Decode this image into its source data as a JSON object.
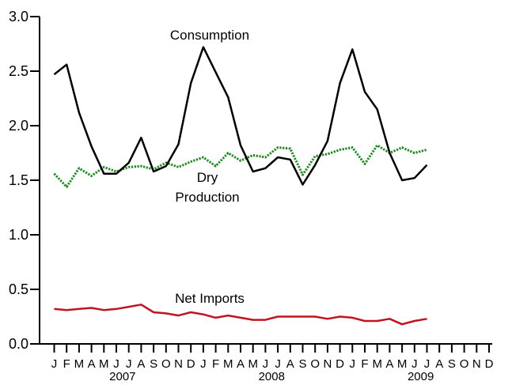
{
  "chart_data": {
    "type": "line",
    "title": "",
    "xlabel": "",
    "ylabel": "",
    "ylim": [
      0,
      3.0
    ],
    "yticks": [
      "0.0",
      "0.5",
      "1.0",
      "1.5",
      "2.0",
      "2.5",
      "3.0"
    ],
    "month_labels": [
      "J",
      "F",
      "M",
      "A",
      "M",
      "J",
      "J",
      "A",
      "S",
      "O",
      "N",
      "D",
      "J",
      "F",
      "M",
      "A",
      "M",
      "J",
      "J",
      "A",
      "S",
      "O",
      "N",
      "D",
      "J",
      "F",
      "M",
      "A",
      "M",
      "J",
      "J",
      "A",
      "S",
      "O",
      "N",
      "D"
    ],
    "year_labels": [
      "2007",
      "2008",
      "2009"
    ],
    "grid": false,
    "legend": "none",
    "annotations": [
      {
        "text": "Consumption",
        "series": "consumption"
      },
      {
        "text": "Dry",
        "series": "dry_production"
      },
      {
        "text": "Production",
        "series": "dry_production"
      },
      {
        "text": "Net Imports",
        "series": "net_imports"
      }
    ],
    "series": [
      {
        "id": "consumption",
        "color": "#000000",
        "style": "solid",
        "values": [
          2.47,
          2.56,
          2.12,
          1.81,
          1.56,
          1.56,
          1.66,
          1.89,
          1.58,
          1.63,
          1.83,
          2.39,
          2.72,
          2.49,
          2.26,
          1.82,
          1.58,
          1.61,
          1.71,
          1.69,
          1.46,
          1.64,
          1.86,
          2.39,
          2.7,
          2.31,
          2.15,
          1.75,
          1.5,
          1.52,
          1.64
        ]
      },
      {
        "id": "dry_production",
        "color": "#1a8a1a",
        "style": "dotted",
        "values": [
          1.56,
          1.44,
          1.61,
          1.54,
          1.62,
          1.58,
          1.62,
          1.63,
          1.6,
          1.66,
          1.62,
          1.67,
          1.71,
          1.63,
          1.75,
          1.68,
          1.73,
          1.71,
          1.8,
          1.79,
          1.55,
          1.72,
          1.74,
          1.78,
          1.8,
          1.65,
          1.82,
          1.75,
          1.8,
          1.75,
          1.78
        ]
      },
      {
        "id": "net_imports",
        "color": "#c0141e",
        "style": "solid",
        "values": [
          0.32,
          0.31,
          0.32,
          0.33,
          0.31,
          0.32,
          0.34,
          0.36,
          0.29,
          0.28,
          0.26,
          0.29,
          0.27,
          0.24,
          0.26,
          0.24,
          0.22,
          0.22,
          0.25,
          0.25,
          0.25,
          0.25,
          0.23,
          0.25,
          0.24,
          0.21,
          0.21,
          0.23,
          0.18,
          0.21,
          0.23
        ]
      }
    ]
  }
}
